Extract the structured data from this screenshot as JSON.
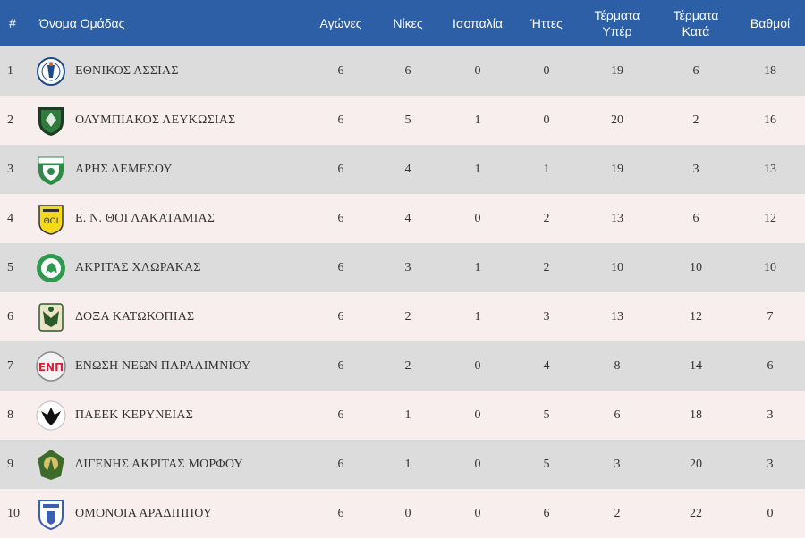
{
  "headers": {
    "position": "#",
    "team": "Όνομα Ομάδας",
    "played": "Αγώνες",
    "wins": "Νίκες",
    "draws": "Ισοπαλία",
    "losses": "Ήττες",
    "goals_for_line1": "Τέρματα",
    "goals_for_line2": "Υπέρ",
    "goals_against_line1": "Τέρματα",
    "goals_against_line2": "Κατά",
    "points": "Βαθμοί"
  },
  "rows": [
    {
      "pos": "1",
      "team": "ΕΘΝΙΚΟΣ ΑΣΣΙΑΣ",
      "crest": "ethnikos-assias-crest-icon",
      "played": "6",
      "wins": "6",
      "draws": "0",
      "losses": "0",
      "gf": "19",
      "ga": "6",
      "pts": "18"
    },
    {
      "pos": "2",
      "team": "ΟΛΥΜΠΙΑΚΟΣ ΛΕΥΚΩΣΙΑΣ",
      "crest": "olympiakos-crest-icon",
      "played": "6",
      "wins": "5",
      "draws": "1",
      "losses": "0",
      "gf": "20",
      "ga": "2",
      "pts": "16"
    },
    {
      "pos": "3",
      "team": "ΑΡΗΣ ΛΕΜΕΣΟΥ",
      "crest": "aris-crest-icon",
      "played": "6",
      "wins": "4",
      "draws": "1",
      "losses": "1",
      "gf": "19",
      "ga": "3",
      "pts": "13"
    },
    {
      "pos": "4",
      "team": "Ε. Ν. ΘΟΙ ΛΑΚΑΤΑΜΙΑΣ",
      "crest": "thoi-crest-icon",
      "played": "6",
      "wins": "4",
      "draws": "0",
      "losses": "2",
      "gf": "13",
      "ga": "6",
      "pts": "12"
    },
    {
      "pos": "5",
      "team": "ΑΚΡΙΤΑΣ ΧΛΩΡΑΚΑΣ",
      "crest": "akritas-crest-icon",
      "played": "6",
      "wins": "3",
      "draws": "1",
      "losses": "2",
      "gf": "10",
      "ga": "10",
      "pts": "10"
    },
    {
      "pos": "6",
      "team": "ΔΟΞΑ ΚΑΤΩΚΟΠΙΑΣ",
      "crest": "doxa-crest-icon",
      "played": "6",
      "wins": "2",
      "draws": "1",
      "losses": "3",
      "gf": "13",
      "ga": "12",
      "pts": "7"
    },
    {
      "pos": "7",
      "team": "ΕΝΩΣΗ ΝΕΩΝ ΠΑΡΑΛΙΜΝΙΟΥ",
      "crest": "enp-crest-icon",
      "played": "6",
      "wins": "2",
      "draws": "0",
      "losses": "4",
      "gf": "8",
      "ga": "14",
      "pts": "6"
    },
    {
      "pos": "8",
      "team": "ΠΑΕΕΚ ΚΕΡΥΝΕΙΑΣ",
      "crest": "paeek-crest-icon",
      "played": "6",
      "wins": "1",
      "draws": "0",
      "losses": "5",
      "gf": "6",
      "ga": "18",
      "pts": "3"
    },
    {
      "pos": "9",
      "team": "ΔΙΓΕΝΗΣ ΑΚΡΙΤΑΣ ΜΟΡΦΟΥ",
      "crest": "digenis-crest-icon",
      "played": "6",
      "wins": "1",
      "draws": "0",
      "losses": "5",
      "gf": "3",
      "ga": "20",
      "pts": "3"
    },
    {
      "pos": "10",
      "team": "ΟΜΟΝΟΙΑ ΑΡΑΔΙΠΠΟΥ",
      "crest": "omonoia-crest-icon",
      "played": "6",
      "wins": "0",
      "draws": "0",
      "losses": "6",
      "gf": "2",
      "ga": "22",
      "pts": "0"
    }
  ]
}
